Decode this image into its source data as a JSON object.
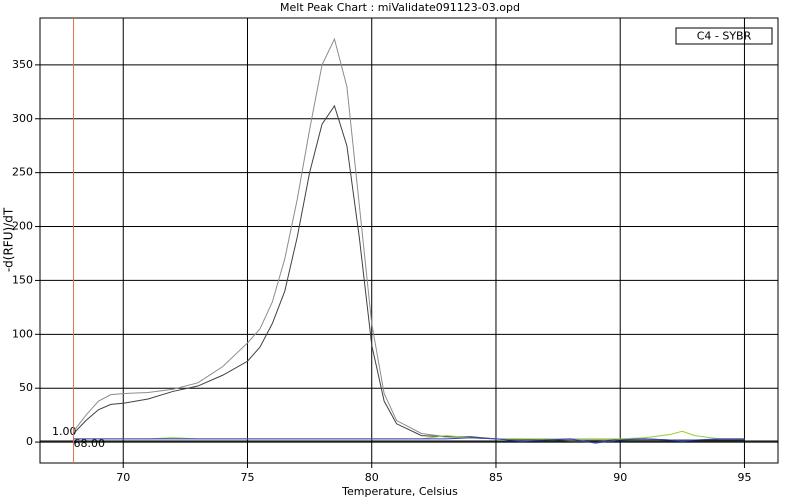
{
  "chart_data": {
    "type": "line",
    "title": "Melt Peak Chart : miValidate091123-03.opd",
    "x_label": "Temperature, Celsius",
    "y_label": "-d(RFU)/dT",
    "legend_label": "C4 - SYBR",
    "xlim": [
      66.65,
      96.35
    ],
    "ylim": [
      -19.4,
      393.5
    ],
    "xticks": [
      70,
      75,
      80,
      85,
      90,
      95
    ],
    "yticks": [
      0,
      50,
      100,
      150,
      200,
      250,
      300,
      350
    ],
    "grid": true,
    "threshold": {
      "value": 1,
      "label": "1.00"
    },
    "marker": {
      "value": 68,
      "label": "68.00"
    },
    "marker_color": "#e07050",
    "x": [
      68,
      68.5,
      69,
      69.5,
      70,
      71,
      72,
      73,
      74,
      75,
      75.5,
      76,
      76.5,
      77,
      77.5,
      78,
      78.5,
      79,
      79.5,
      80,
      80.5,
      81,
      82,
      83,
      84,
      85,
      86,
      87,
      88,
      89,
      90,
      91,
      92,
      92.5,
      93,
      94,
      95
    ],
    "series": [
      {
        "color": "#8c8c8c",
        "values": [
          10,
          25,
          38,
          44,
          45,
          46,
          49,
          55,
          70,
          92,
          105,
          130,
          170,
          225,
          290,
          350,
          374,
          330,
          220,
          110,
          45,
          20,
          8,
          5,
          4,
          3,
          3,
          2,
          2,
          2,
          2,
          2,
          2,
          2,
          2,
          2,
          2
        ]
      },
      {
        "color": "#404040",
        "values": [
          8,
          20,
          30,
          35,
          36,
          40,
          47,
          52,
          62,
          75,
          88,
          110,
          140,
          190,
          250,
          295,
          312,
          275,
          190,
          90,
          38,
          17,
          6,
          5,
          5,
          3,
          2,
          3,
          1,
          0,
          3,
          3,
          2,
          2,
          2,
          2,
          2
        ]
      },
      {
        "color": "#9acd32",
        "values": [
          3,
          3,
          3,
          3,
          3,
          3,
          4,
          3,
          3,
          3,
          3,
          3,
          3,
          3,
          3,
          3,
          3,
          3,
          3,
          3,
          3,
          3,
          3,
          6,
          4,
          3,
          3,
          3,
          3,
          3,
          3,
          4,
          7,
          10,
          6,
          3,
          3
        ]
      },
      {
        "color": "#2f3fc8",
        "values": [
          3,
          3,
          3,
          3,
          3,
          3,
          3,
          3,
          3,
          3,
          3,
          3,
          3,
          3,
          3,
          3,
          3,
          3,
          3,
          3,
          3,
          3,
          3,
          3,
          4,
          3,
          1,
          2,
          3,
          -1,
          2,
          3,
          2,
          1,
          2,
          3,
          3
        ]
      }
    ]
  }
}
